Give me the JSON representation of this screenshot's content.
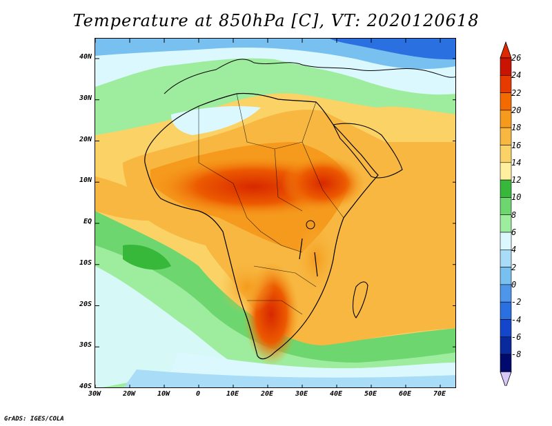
{
  "title": "Temperature at 850hPa [C], VT: 2020120618",
  "credit": "GrADS: IGES/COLA",
  "lat_labels": [
    "40N",
    "30N",
    "20N",
    "10N",
    "EQ",
    "10S",
    "20S",
    "30S",
    "40S"
  ],
  "lon_labels": [
    "30W",
    "20W",
    "10W",
    "0",
    "10E",
    "20E",
    "30E",
    "40E",
    "50E",
    "60E",
    "70E"
  ],
  "colorbar": {
    "labels": [
      "26",
      "24",
      "22",
      "20",
      "18",
      "16",
      "14",
      "12",
      "10",
      "8",
      "6",
      "4",
      "2",
      "0",
      "-2",
      "-4",
      "-6",
      "-8"
    ],
    "colors": [
      "#c81400",
      "#e63a00",
      "#f26a00",
      "#f59a1c",
      "#f7b740",
      "#fad266",
      "#fff0a0",
      "#37b83a",
      "#6ed66e",
      "#9eed9e",
      "#dcf8ff",
      "#a8dcf7",
      "#78c0f0",
      "#4e96ea",
      "#2a70e0",
      "#1446cc",
      "#082a9c",
      "#000a6e"
    ],
    "over_color": "#dd2a00",
    "under_color": "#d8c8f8"
  }
}
